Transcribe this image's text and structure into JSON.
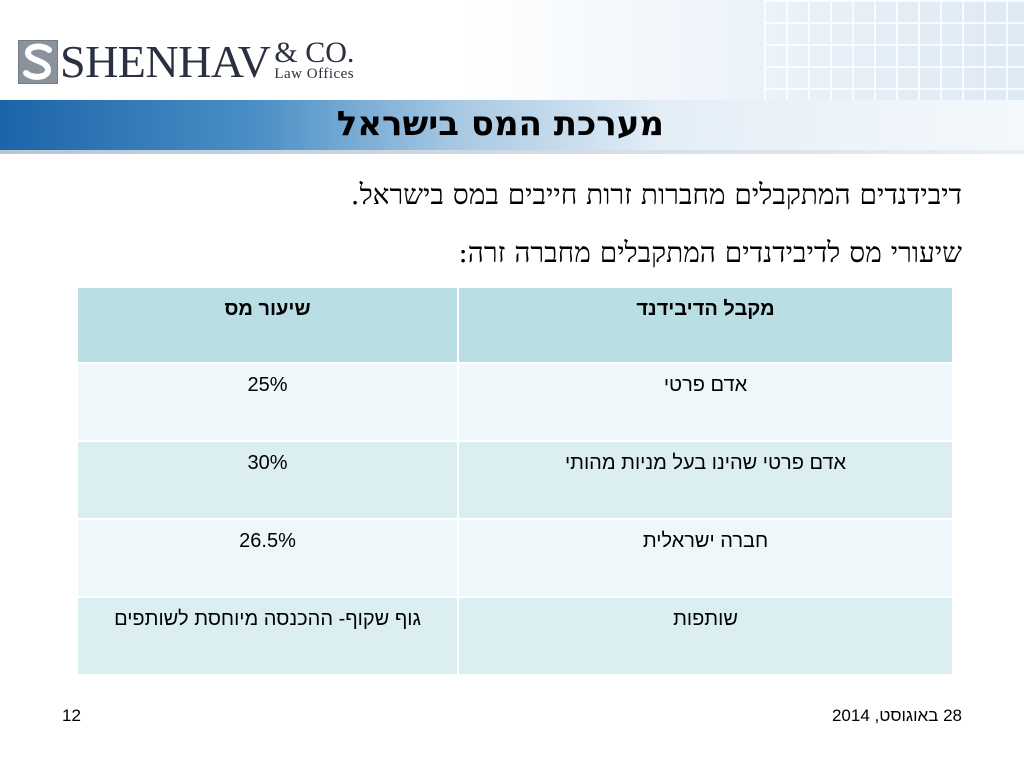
{
  "logo": {
    "name": "SHENHAV",
    "co": "& CO.",
    "sub": "Law Offices"
  },
  "title": "מערכת המס בישראל",
  "lines": [
    "דיבידנדים המתקבלים מחברות זרות חייבים במס בישראל.",
    "שיעורי מס לדיבידנדים המתקבלים מחברה זרה:"
  ],
  "table": {
    "headers": {
      "recipient": "מקבל הדיבידנד",
      "rate": "שיעור מס"
    },
    "rows": [
      {
        "recipient": "אדם פרטי",
        "rate": "25%"
      },
      {
        "recipient": "אדם פרטי שהינו בעל מניות מהותי",
        "rate": "30%"
      },
      {
        "recipient": "חברה ישראלית",
        "rate": "26.5%"
      },
      {
        "recipient": "שותפות",
        "rate": "גוף שקוף- ההכנסה מיוחסת לשותפים"
      }
    ]
  },
  "footer": {
    "date": "28 באוגוסט, 2014",
    "page": "12"
  },
  "colors": {
    "band": "#1b64a8",
    "header_cell": "#b9dfe4",
    "row_odd": "#dbeff2",
    "row_even": "#eef7f9"
  }
}
